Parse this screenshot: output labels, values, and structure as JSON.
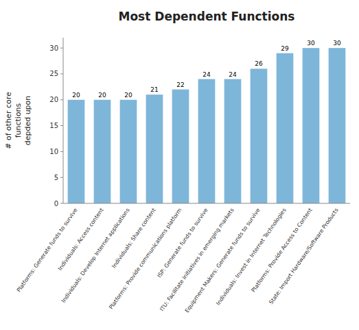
{
  "chart_data": {
    "type": "bar",
    "title": "Most Dependent Functions",
    "ylabel": "# of other core\nfunctions\ndepded upon",
    "categories": [
      "Platforms: Generate funds to survive",
      "Individuals: Access content",
      "Individuals: Develop Internet applications",
      "Individuals: Share content",
      "Platforms: Provide communications platform",
      "ISP: Generate funds to survive",
      "ITU: Facilitate initiatives in emerging markets",
      "Equipment Makers: Generate funds to survive",
      "Individuals: Invest in Internet Technologies",
      "Platforms: Provide Access to Content",
      "State: Import Hardware/Software Products"
    ],
    "values": [
      20,
      20,
      20,
      21,
      22,
      24,
      24,
      26,
      29,
      30,
      30
    ],
    "color": "#7eb6d9",
    "ylim": [
      0,
      32
    ],
    "yticks": [
      0,
      5,
      10,
      15,
      20,
      25,
      30
    ],
    "data_labels": true,
    "grid": false
  }
}
